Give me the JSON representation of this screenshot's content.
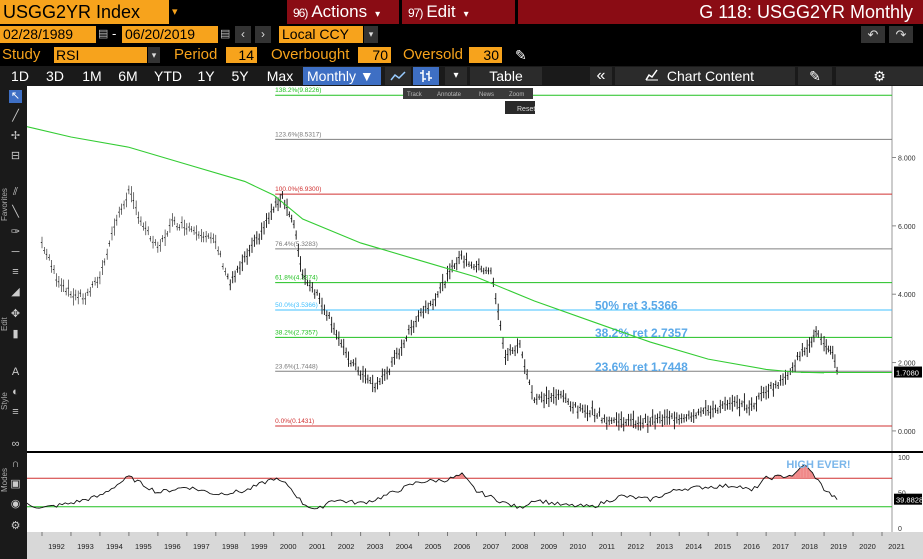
{
  "header": {
    "ticker": "USGG2YR Index",
    "actions_num": "96)",
    "actions_label": "Actions",
    "edit_num": "97)",
    "edit_label": "Edit",
    "title": "G 118: USGG2YR Monthly"
  },
  "dates": {
    "start": "02/28/1989",
    "separator": "-",
    "end": "06/20/2019",
    "currency": "Local CCY"
  },
  "study": {
    "study_label": "Study",
    "study_value": "RSI",
    "period_label": "Period",
    "period_value": "14",
    "overbought_label": "Overbought",
    "overbought_value": "70",
    "oversold_label": "Oversold",
    "oversold_value": "30"
  },
  "toolbar": {
    "ranges": [
      "1D",
      "3D",
      "1M",
      "6M",
      "YTD",
      "1Y",
      "5Y",
      "Max"
    ],
    "frequency": "Monthly",
    "table_label": "Table",
    "chart_content_label": "Chart Content"
  },
  "side_labels": {
    "favorites": "Favorites",
    "edit": "Edit",
    "style": "Style",
    "modes": "Modes"
  },
  "chart_overlay": {
    "track": "Track",
    "annotate": "Annotate",
    "news": "News",
    "zoom": "Zoom",
    "reset": "Reset"
  },
  "chart_data": {
    "type": "line",
    "x_ticks": [
      "1992",
      "1993",
      "1994",
      "1995",
      "1996",
      "1997",
      "1998",
      "1999",
      "2000",
      "2001",
      "2002",
      "2003",
      "2004",
      "2005",
      "2006",
      "2007",
      "2008",
      "2009",
      "2010",
      "2011",
      "2012",
      "2013",
      "2014",
      "2015",
      "2016",
      "2017",
      "2018",
      "2019",
      "2020",
      "2021"
    ],
    "y_ticks": [
      "8.000",
      "6.000",
      "4.000",
      "2.000",
      "0.000"
    ],
    "ylim": [
      -0.5,
      9.8
    ],
    "last_price": "1.7080",
    "series": [
      {
        "style": "ohlc",
        "points": [
          [
            1992,
            5.5
          ],
          [
            1992.5,
            4.5
          ],
          [
            1993,
            4.0
          ],
          [
            1993.5,
            3.9
          ],
          [
            1994,
            4.5
          ],
          [
            1994.5,
            6.0
          ],
          [
            1995,
            7.0
          ],
          [
            1995.5,
            6.0
          ],
          [
            1996,
            5.3
          ],
          [
            1996.5,
            6.1
          ],
          [
            1997,
            6.0
          ],
          [
            1997.5,
            5.8
          ],
          [
            1998,
            5.5
          ],
          [
            1998.5,
            4.3
          ],
          [
            1999,
            5.0
          ],
          [
            1999.5,
            5.7
          ],
          [
            2000,
            6.5
          ],
          [
            2000.3,
            6.9
          ],
          [
            2000.7,
            6.0
          ],
          [
            2001,
            4.6
          ],
          [
            2001.5,
            4.0
          ],
          [
            2002,
            3.2
          ],
          [
            2002.5,
            2.2
          ],
          [
            2003,
            1.7
          ],
          [
            2003.5,
            1.3
          ],
          [
            2004,
            1.8
          ],
          [
            2004.5,
            2.6
          ],
          [
            2005,
            3.4
          ],
          [
            2005.5,
            3.8
          ],
          [
            2006,
            4.5
          ],
          [
            2006.4,
            5.1
          ],
          [
            2007,
            4.8
          ],
          [
            2007.5,
            4.7
          ],
          [
            2008,
            2.2
          ],
          [
            2008.5,
            2.5
          ],
          [
            2009,
            0.9
          ],
          [
            2009.5,
            1.0
          ],
          [
            2010,
            1.0
          ],
          [
            2010.5,
            0.6
          ],
          [
            2011,
            0.6
          ],
          [
            2011.5,
            0.3
          ],
          [
            2012,
            0.3
          ],
          [
            2012.5,
            0.25
          ],
          [
            2013,
            0.3
          ],
          [
            2013.5,
            0.35
          ],
          [
            2014,
            0.4
          ],
          [
            2014.5,
            0.5
          ],
          [
            2015,
            0.6
          ],
          [
            2015.5,
            0.7
          ],
          [
            2016,
            0.8
          ],
          [
            2016.5,
            0.7
          ],
          [
            2017,
            1.2
          ],
          [
            2017.5,
            1.4
          ],
          [
            2018,
            2.0
          ],
          [
            2018.5,
            2.6
          ],
          [
            2018.8,
            2.9
          ],
          [
            2019,
            2.5
          ],
          [
            2019.3,
            2.2
          ],
          [
            2019.45,
            1.71
          ]
        ]
      },
      {
        "style": "moving_average",
        "points": [
          [
            1991,
            9.0
          ],
          [
            1993,
            8.6
          ],
          [
            1995,
            8.3
          ],
          [
            1997,
            7.8
          ],
          [
            1999,
            7.3
          ],
          [
            2000,
            6.9
          ],
          [
            2001,
            6.2
          ],
          [
            2003,
            5.5
          ],
          [
            2005,
            5.0
          ],
          [
            2007,
            4.5
          ],
          [
            2009,
            3.8
          ],
          [
            2011,
            3.2
          ],
          [
            2013,
            2.6
          ],
          [
            2015,
            2.1
          ],
          [
            2017,
            1.8
          ],
          [
            2018,
            1.72
          ],
          [
            2019,
            1.7
          ]
        ]
      }
    ],
    "fib_levels": [
      {
        "label": "138.2%(9.8226)",
        "value": 9.8226,
        "color": "#20c020"
      },
      {
        "label": "123.6%(8.5317)",
        "value": 8.5317,
        "color": "#808080"
      },
      {
        "label": "100.0%(6.9300)",
        "value": 6.93,
        "color": "#d03030"
      },
      {
        "label": "76.4%(5.3283)",
        "value": 5.3283,
        "color": "#808080"
      },
      {
        "label": "61.8%(4.3374)",
        "value": 4.3374,
        "color": "#20c020"
      },
      {
        "label": "50.0%(3.5366)",
        "value": 3.5366,
        "color": "#40c0ff"
      },
      {
        "label": "38.2%(2.7357)",
        "value": 2.7357,
        "color": "#20c020"
      },
      {
        "label": "23.6%(1.7448)",
        "value": 1.7448,
        "color": "#808080"
      },
      {
        "label": "0.0%(0.1431)",
        "value": 0.1431,
        "color": "#d03030"
      }
    ],
    "annotations": [
      {
        "text": "50% ret 3.5366",
        "value": 3.5366
      },
      {
        "text": "38.2% ret 2.7357",
        "value": 2.7357
      },
      {
        "text": "23.6% ret 1.7448",
        "value": 1.7448
      }
    ],
    "rsi": {
      "ylim": [
        0,
        100
      ],
      "y_ticks": [
        "100",
        "50",
        "0"
      ],
      "overbought": 70,
      "oversold": 30,
      "last_value": "39.8828",
      "annotation": "HIGH EVER!",
      "points": [
        [
          1991,
          40
        ],
        [
          1992,
          28
        ],
        [
          1993,
          35
        ],
        [
          1994,
          45
        ],
        [
          1995,
          72
        ],
        [
          1996,
          50
        ],
        [
          1997,
          58
        ],
        [
          1998,
          48
        ],
        [
          1999,
          52
        ],
        [
          2000,
          70
        ],
        [
          2000.5,
          60
        ],
        [
          2001,
          35
        ],
        [
          2001.5,
          25
        ],
        [
          2002,
          40
        ],
        [
          2003,
          35
        ],
        [
          2003.5,
          40
        ],
        [
          2004,
          48
        ],
        [
          2005,
          65
        ],
        [
          2006,
          68
        ],
        [
          2006.5,
          75
        ],
        [
          2007,
          52
        ],
        [
          2008,
          35
        ],
        [
          2008.5,
          28
        ],
        [
          2009,
          40
        ],
        [
          2010,
          32
        ],
        [
          2011,
          30
        ],
        [
          2012,
          45
        ],
        [
          2013,
          40
        ],
        [
          2014,
          55
        ],
        [
          2015,
          58
        ],
        [
          2016,
          60
        ],
        [
          2016.5,
          52
        ],
        [
          2017,
          70
        ],
        [
          2018,
          75
        ],
        [
          2018.3,
          90
        ],
        [
          2018.7,
          72
        ],
        [
          2019,
          55
        ],
        [
          2019.45,
          39.88
        ]
      ]
    }
  }
}
